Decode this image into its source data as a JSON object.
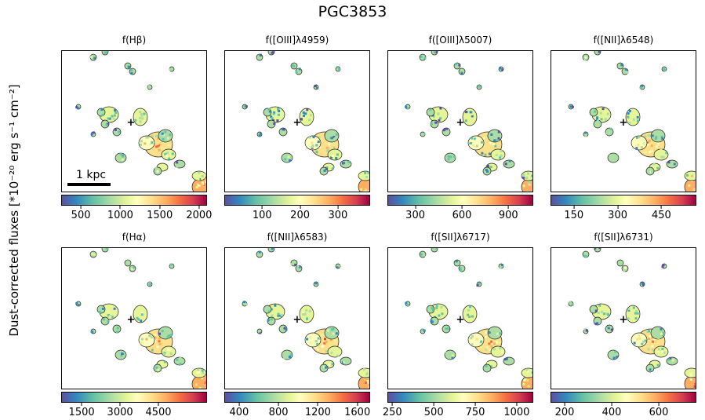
{
  "figure": {
    "title": "PGC3853",
    "ylabel": "Dust-corrected fluxes [*10⁻²⁰ erg s⁻¹ cm⁻²]",
    "scalebar_label": "1 kpc",
    "colormap": [
      "#5e4fa2",
      "#3288bd",
      "#66c2a5",
      "#abdda4",
      "#e6f598",
      "#ffffbf",
      "#fee08b",
      "#fdae61",
      "#f46d43",
      "#d53e4f",
      "#9e0142"
    ]
  },
  "chart_data": [
    {
      "type": "heatmap",
      "title": "f(Hβ)",
      "colorbar": {
        "range": [
          250,
          2100
        ],
        "ticks": [
          500,
          1000,
          1500,
          2000
        ],
        "tick_labels": [
          "500",
          "1000",
          "1500",
          "2000"
        ]
      }
    },
    {
      "type": "heatmap",
      "title": "f([OIII]λ4959)",
      "colorbar": {
        "range": [
          0,
          385
        ],
        "ticks": [
          100,
          200,
          300
        ],
        "tick_labels": [
          "100",
          "200",
          "300"
        ]
      }
    },
    {
      "type": "heatmap",
      "title": "f([OIII]λ5007)",
      "colorbar": {
        "range": [
          120,
          1060
        ],
        "ticks": [
          300,
          600,
          900
        ],
        "tick_labels": [
          "300",
          "600",
          "900"
        ]
      }
    },
    {
      "type": "heatmap",
      "title": "f([NII]λ6548)",
      "colorbar": {
        "range": [
          70,
          570
        ],
        "ticks": [
          150,
          300,
          450
        ],
        "tick_labels": [
          "150",
          "300",
          "450"
        ]
      }
    },
    {
      "type": "heatmap",
      "title": "f(Hα)",
      "colorbar": {
        "range": [
          700,
          6400
        ],
        "ticks": [
          1500,
          3000,
          4500
        ],
        "tick_labels": [
          "1500",
          "3000",
          "4500"
        ]
      }
    },
    {
      "type": "heatmap",
      "title": "f([NII]λ6583)",
      "colorbar": {
        "range": [
          250,
          1730
        ],
        "ticks": [
          400,
          800,
          1200,
          1600
        ],
        "tick_labels": [
          "400",
          "800",
          "1200",
          "1600"
        ]
      }
    },
    {
      "type": "heatmap",
      "title": "f([SII]λ6717)",
      "colorbar": {
        "range": [
          220,
          1100
        ],
        "ticks": [
          250,
          500,
          750,
          1000
        ],
        "tick_labels": [
          "250",
          "500",
          "750",
          "1000"
        ]
      }
    },
    {
      "type": "heatmap",
      "title": "f([SII]λ6731)",
      "colorbar": {
        "range": [
          140,
          760
        ],
        "ticks": [
          200,
          400,
          600
        ],
        "tick_labels": [
          "200",
          "400",
          "600"
        ]
      }
    }
  ]
}
